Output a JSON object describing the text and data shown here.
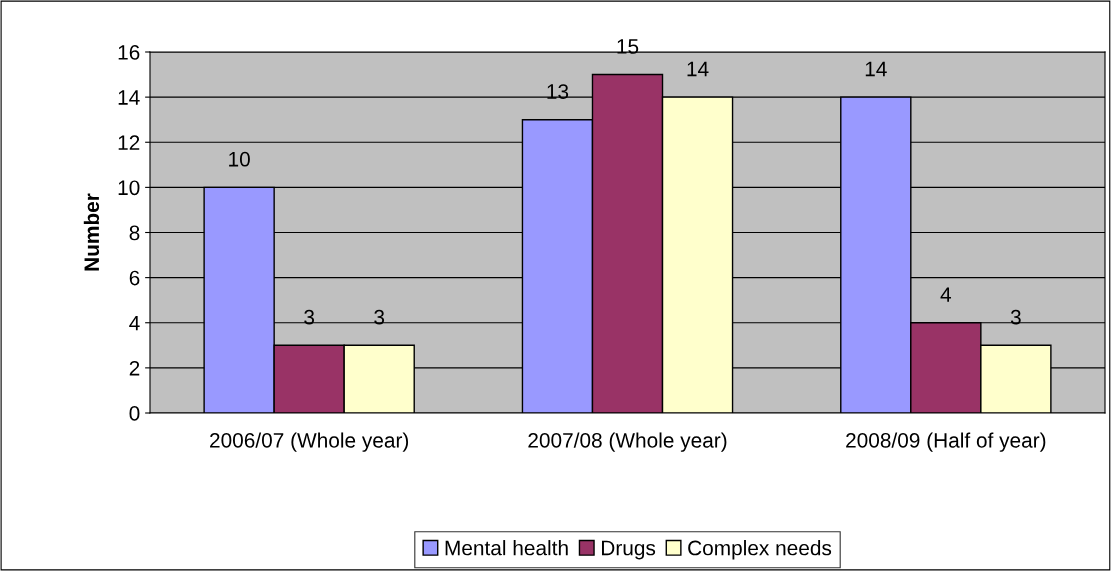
{
  "chart_data": {
    "type": "bar",
    "ylabel": "Number",
    "categories": [
      "2006/07 (Whole year)",
      "2007/08 (Whole year)",
      "2008/09 (Half of year)"
    ],
    "series": [
      {
        "name": "Mental health",
        "color": "#9999ff",
        "values": [
          10,
          13,
          14
        ]
      },
      {
        "name": "Drugs",
        "color": "#993366",
        "values": [
          3,
          15,
          4
        ]
      },
      {
        "name": "Complex needs",
        "color": "#ffffcc",
        "values": [
          3,
          14,
          3
        ]
      }
    ],
    "ylim": [
      0,
      16
    ],
    "yticks": [
      0,
      2,
      4,
      6,
      8,
      10,
      12,
      14,
      16
    ],
    "grid": "y",
    "legend": "bottom",
    "data_labels": true
  }
}
